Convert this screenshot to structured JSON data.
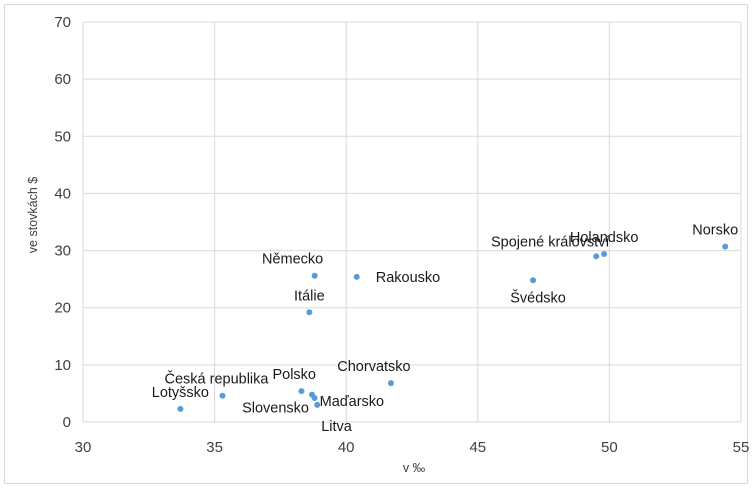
{
  "chart_data": {
    "type": "scatter",
    "title": "",
    "xlabel": "v ‰",
    "ylabel": "ve stovkách $",
    "xlim": [
      30,
      55
    ],
    "ylim": [
      0,
      70
    ],
    "x_ticks": [
      30,
      35,
      40,
      45,
      50,
      55
    ],
    "y_ticks": [
      0,
      10,
      20,
      30,
      40,
      50,
      60,
      70
    ],
    "grid": "vertical and horizontal",
    "legend": "none",
    "point_color": "#5b9bd5",
    "points": [
      {
        "label": "Lotyšsko",
        "x": 33.7,
        "y": 2.3
      },
      {
        "label": "Česká republika",
        "x": 35.3,
        "y": 4.6
      },
      {
        "label": "Polsko",
        "x": 38.3,
        "y": 5.4
      },
      {
        "label": "Slovensko",
        "x": 38.7,
        "y": 4.8
      },
      {
        "label": "Maďarsko",
        "x": 38.8,
        "y": 4.2
      },
      {
        "label": "Litva",
        "x": 38.9,
        "y": 3.0
      },
      {
        "label": "Chorvatsko",
        "x": 41.7,
        "y": 6.8
      },
      {
        "label": "Itálie",
        "x": 38.6,
        "y": 19.2
      },
      {
        "label": "Německo",
        "x": 38.8,
        "y": 25.6
      },
      {
        "label": "Rakousko",
        "x": 40.4,
        "y": 25.4
      },
      {
        "label": "Švédsko",
        "x": 47.1,
        "y": 24.8
      },
      {
        "label": "Spojené království",
        "x": 49.5,
        "y": 29.0
      },
      {
        "label": "Holandsko",
        "x": 49.8,
        "y": 29.4
      },
      {
        "label": "Norsko",
        "x": 54.4,
        "y": 30.7
      }
    ]
  }
}
